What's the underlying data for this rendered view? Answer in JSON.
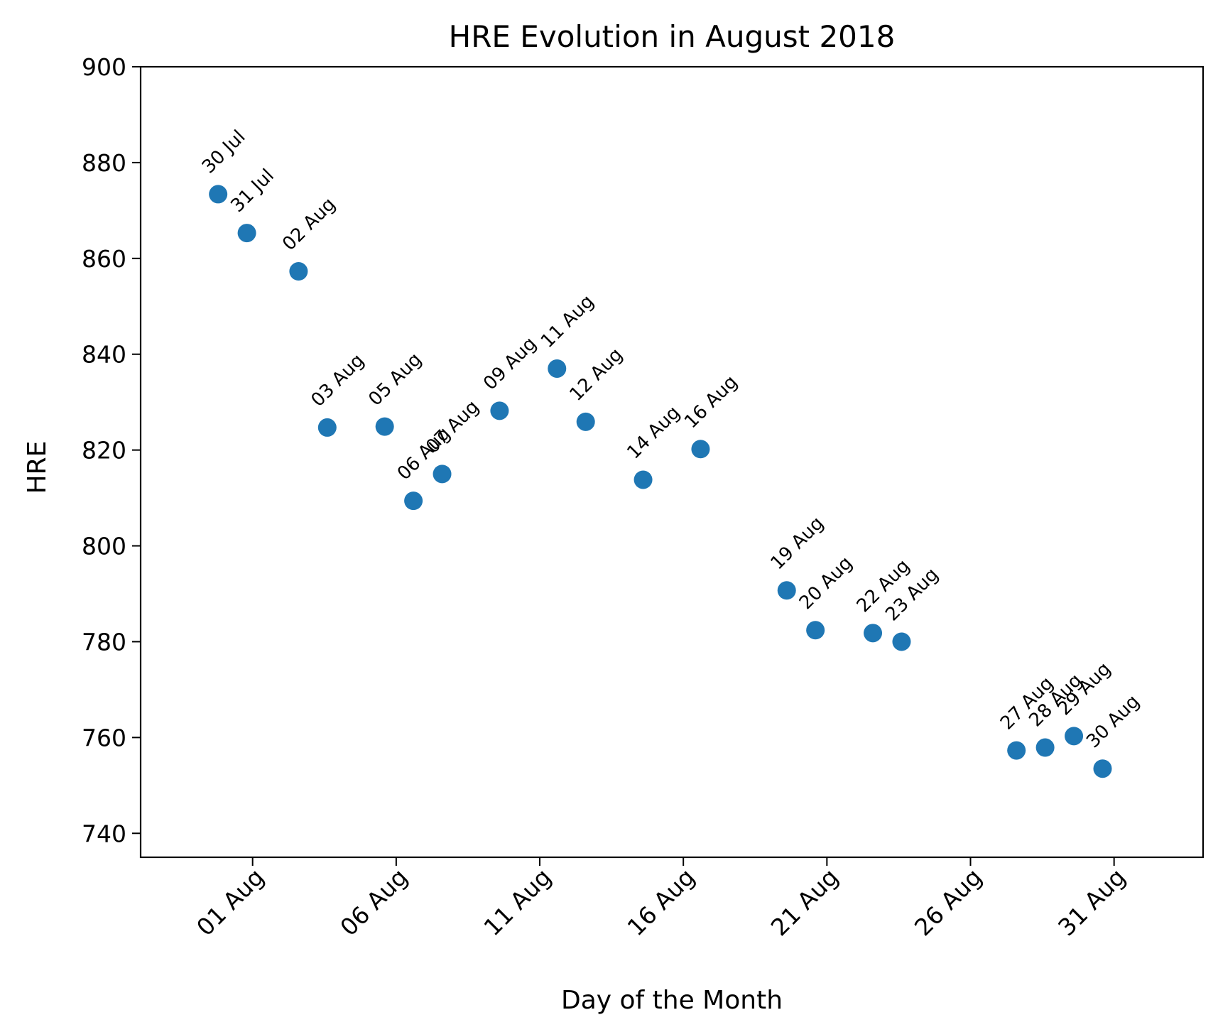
{
  "chart_data": {
    "type": "scatter",
    "title": "HRE Evolution in August 2018",
    "xlabel": "Day of the Month",
    "ylabel": "HRE",
    "xlim": [
      -3.9,
      33.1
    ],
    "ylim": [
      735,
      900
    ],
    "grid": false,
    "marker_color": "#1f77b4",
    "x_ticks": [
      {
        "x": 0,
        "label": "01 Aug"
      },
      {
        "x": 5,
        "label": "06 Aug"
      },
      {
        "x": 10,
        "label": "11 Aug"
      },
      {
        "x": 15,
        "label": "16 Aug"
      },
      {
        "x": 20,
        "label": "21 Aug"
      },
      {
        "x": 25,
        "label": "26 Aug"
      },
      {
        "x": 30,
        "label": "31 Aug"
      }
    ],
    "y_ticks": [
      740,
      760,
      780,
      800,
      820,
      840,
      860,
      880,
      900
    ],
    "points": [
      {
        "x": -1.2,
        "y": 873.4,
        "label": "30 Jul"
      },
      {
        "x": -0.2,
        "y": 865.3,
        "label": "31 Jul"
      },
      {
        "x": 1.6,
        "y": 857.3,
        "label": "02 Aug"
      },
      {
        "x": 2.6,
        "y": 824.7,
        "label": "03 Aug"
      },
      {
        "x": 4.6,
        "y": 824.9,
        "label": "05 Aug"
      },
      {
        "x": 5.6,
        "y": 809.4,
        "label": "06 Aug"
      },
      {
        "x": 6.6,
        "y": 815.0,
        "label": "07 Aug"
      },
      {
        "x": 8.6,
        "y": 828.2,
        "label": "09 Aug"
      },
      {
        "x": 10.6,
        "y": 837.0,
        "label": "11 Aug"
      },
      {
        "x": 11.6,
        "y": 825.9,
        "label": "12 Aug"
      },
      {
        "x": 13.6,
        "y": 813.8,
        "label": "14 Aug"
      },
      {
        "x": 15.6,
        "y": 820.2,
        "label": "16 Aug"
      },
      {
        "x": 18.6,
        "y": 790.7,
        "label": "19 Aug"
      },
      {
        "x": 19.6,
        "y": 782.4,
        "label": "20 Aug"
      },
      {
        "x": 21.6,
        "y": 781.8,
        "label": "22 Aug"
      },
      {
        "x": 22.6,
        "y": 780.0,
        "label": "23 Aug"
      },
      {
        "x": 26.6,
        "y": 757.3,
        "label": "27 Aug"
      },
      {
        "x": 27.6,
        "y": 757.9,
        "label": "28 Aug"
      },
      {
        "x": 28.6,
        "y": 760.3,
        "label": "29 Aug"
      },
      {
        "x": 29.6,
        "y": 753.5,
        "label": "30 Aug"
      }
    ]
  }
}
